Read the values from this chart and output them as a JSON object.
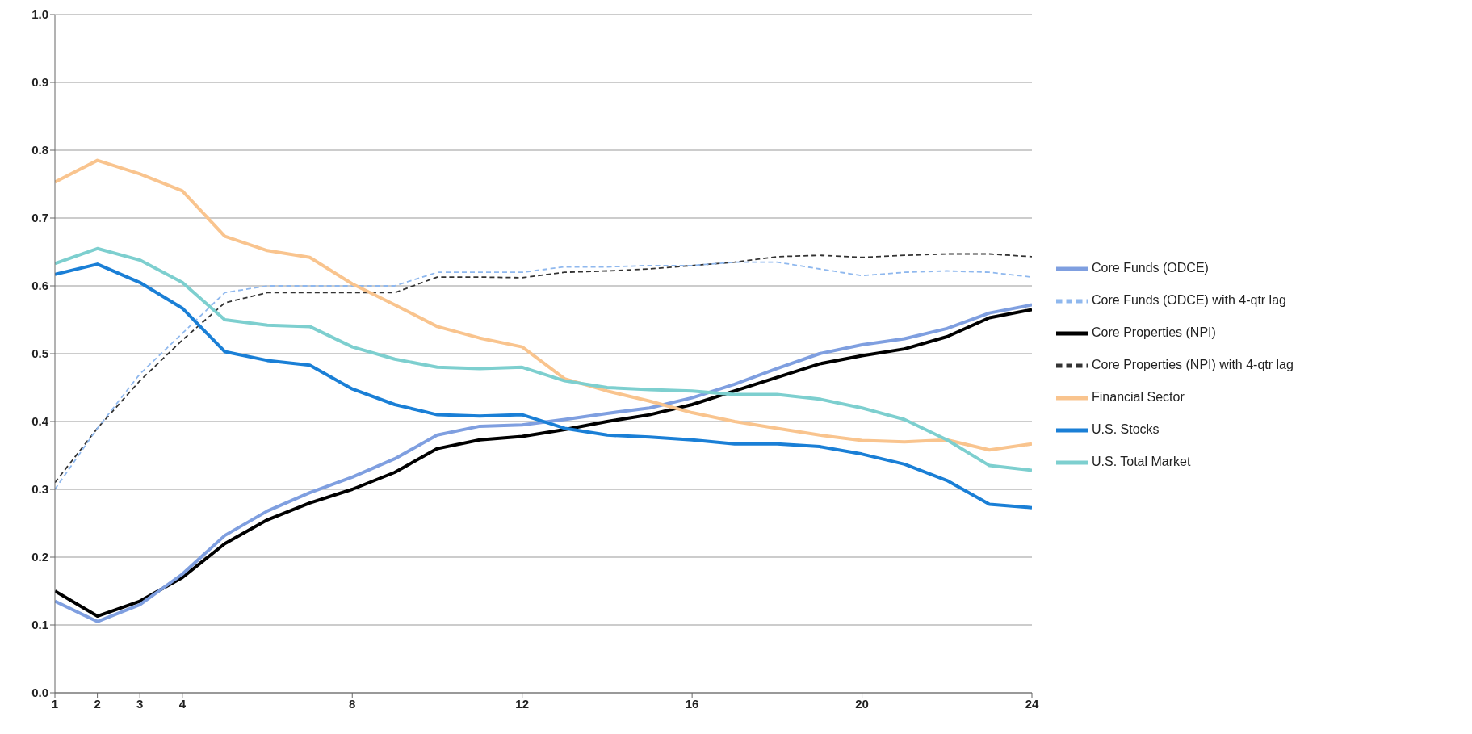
{
  "chart_data": {
    "type": "line",
    "x": [
      1,
      2,
      3,
      4,
      5,
      6,
      7,
      8,
      9,
      10,
      11,
      12,
      13,
      14,
      15,
      16,
      17,
      18,
      19,
      20,
      21,
      22,
      23,
      24
    ],
    "xlim": [
      1,
      24
    ],
    "xticks": [
      1,
      2,
      3,
      4,
      8,
      12,
      16,
      20,
      24
    ],
    "ylim": [
      0,
      1
    ],
    "yticks": [
      {
        "value": 0,
        "label": "0.0"
      },
      {
        "value": 0.1,
        "label": "0.1"
      },
      {
        "value": 0.2,
        "label": "0.2"
      },
      {
        "value": 0.3,
        "label": "0.3"
      },
      {
        "value": 0.4,
        "label": "0.4"
      },
      {
        "value": 0.5,
        "label": "0.5"
      },
      {
        "value": 0.6,
        "label": "0.6"
      },
      {
        "value": 0.7,
        "label": "0.7"
      },
      {
        "value": 0.8,
        "label": "0.8"
      },
      {
        "value": 0.9,
        "label": "0.9"
      },
      {
        "value": 1,
        "label": "1.0"
      }
    ],
    "grid": "y",
    "legend": "right",
    "marker": "none",
    "series": [
      {
        "name": "Core Properties (NPI) with 4-qtr lag",
        "color": "#333333",
        "line_style": "dashed",
        "values": [
          0.31,
          0.39,
          0.46,
          0.52,
          0.575,
          0.59,
          0.59,
          0.59,
          0.59,
          0.613,
          0.613,
          0.612,
          0.62,
          0.622,
          0.625,
          0.63,
          0.635,
          0.643,
          0.645,
          0.642,
          0.645,
          0.647,
          0.647,
          0.643
        ]
      },
      {
        "name": "Core Funds (ODCE) with 4-qtr lag",
        "color": "#8fb8ee",
        "line_style": "dashed",
        "values": [
          0.3,
          0.39,
          0.47,
          0.53,
          0.59,
          0.6,
          0.6,
          0.6,
          0.6,
          0.62,
          0.62,
          0.62,
          0.628,
          0.628,
          0.63,
          0.63,
          0.635,
          0.635,
          0.625,
          0.615,
          0.62,
          0.622,
          0.62,
          0.613
        ]
      },
      {
        "name": "Core Properties (NPI)",
        "color": "#000000",
        "line_style": "solid",
        "values": [
          0.15,
          0.113,
          0.135,
          0.17,
          0.22,
          0.255,
          0.28,
          0.3,
          0.325,
          0.36,
          0.373,
          0.378,
          0.388,
          0.4,
          0.41,
          0.425,
          0.445,
          0.465,
          0.485,
          0.497,
          0.507,
          0.525,
          0.553,
          0.565
        ]
      },
      {
        "name": "Core Funds (ODCE)",
        "color": "#7f9fe0",
        "line_style": "solid",
        "values": [
          0.135,
          0.105,
          0.13,
          0.175,
          0.232,
          0.268,
          0.295,
          0.318,
          0.345,
          0.38,
          0.393,
          0.395,
          0.403,
          0.412,
          0.42,
          0.435,
          0.455,
          0.478,
          0.5,
          0.513,
          0.522,
          0.537,
          0.56,
          0.572
        ]
      },
      {
        "name": "Financial Sector",
        "color": "#f9c48e",
        "line_style": "solid",
        "values": [
          0.753,
          0.785,
          0.765,
          0.74,
          0.673,
          0.652,
          0.642,
          0.603,
          0.572,
          0.54,
          0.523,
          0.51,
          0.463,
          0.445,
          0.43,
          0.413,
          0.4,
          0.39,
          0.38,
          0.372,
          0.37,
          0.373,
          0.358,
          0.367
        ]
      },
      {
        "name": "U.S. Total Market",
        "color": "#7dcfcf",
        "line_style": "solid",
        "values": [
          0.633,
          0.655,
          0.638,
          0.605,
          0.55,
          0.542,
          0.54,
          0.51,
          0.492,
          0.48,
          0.478,
          0.48,
          0.46,
          0.45,
          0.447,
          0.445,
          0.44,
          0.44,
          0.433,
          0.42,
          0.403,
          0.373,
          0.335,
          0.328
        ]
      },
      {
        "name": "U.S. Stocks",
        "color": "#1a7fd6",
        "line_style": "solid",
        "values": [
          0.617,
          0.632,
          0.605,
          0.567,
          0.503,
          0.49,
          0.483,
          0.448,
          0.425,
          0.41,
          0.408,
          0.41,
          0.39,
          0.38,
          0.377,
          0.373,
          0.367,
          0.367,
          0.363,
          0.352,
          0.337,
          0.313,
          0.278,
          0.273
        ]
      }
    ]
  }
}
